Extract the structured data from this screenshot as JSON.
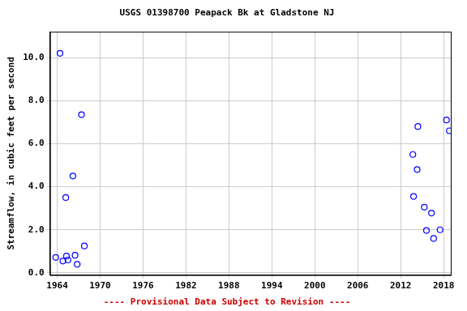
{
  "chart_data": {
    "type": "scatter",
    "title": "USGS 01398700 Peapack Bk at Gladstone NJ",
    "y_label": "Streamflow, in cubic feet per second",
    "annotation": "---- Provisional Data Subject to Revision ----",
    "series": [
      {
        "name": "Streamflow",
        "color": "#0000ff",
        "marker": "circle",
        "x": [
          1963.8,
          1964.4,
          1964.8,
          1965.2,
          1965.3,
          1965.5,
          1966.2,
          1966.5,
          1966.8,
          1967.4,
          1967.8,
          2013.7,
          2013.8,
          2014.3,
          2014.4,
          2015.3,
          2015.6,
          2016.3,
          2016.6,
          2017.5,
          2018.4,
          2018.8
        ],
        "values": [
          0.72,
          10.2,
          0.55,
          3.5,
          0.78,
          0.6,
          4.5,
          0.82,
          0.4,
          7.35,
          1.25,
          5.5,
          3.55,
          4.8,
          6.8,
          3.05,
          1.97,
          2.78,
          1.6,
          2.0,
          7.1,
          6.6
        ]
      }
    ],
    "xlim": [
      1963,
      2019
    ],
    "xticks": [
      1964,
      1970,
      1976,
      1982,
      1988,
      1994,
      2000,
      2006,
      2012,
      2018
    ],
    "ylim": [
      -0.1,
      11.2
    ],
    "yticks": [
      {
        "value": 0,
        "label": "0.0"
      },
      {
        "value": 2,
        "label": "2.0"
      },
      {
        "value": 4,
        "label": "4.0"
      },
      {
        "value": 6,
        "label": "6.0"
      },
      {
        "value": 8,
        "label": "8.0"
      },
      {
        "value": 10,
        "label": "10.0"
      }
    ],
    "grid": true
  }
}
